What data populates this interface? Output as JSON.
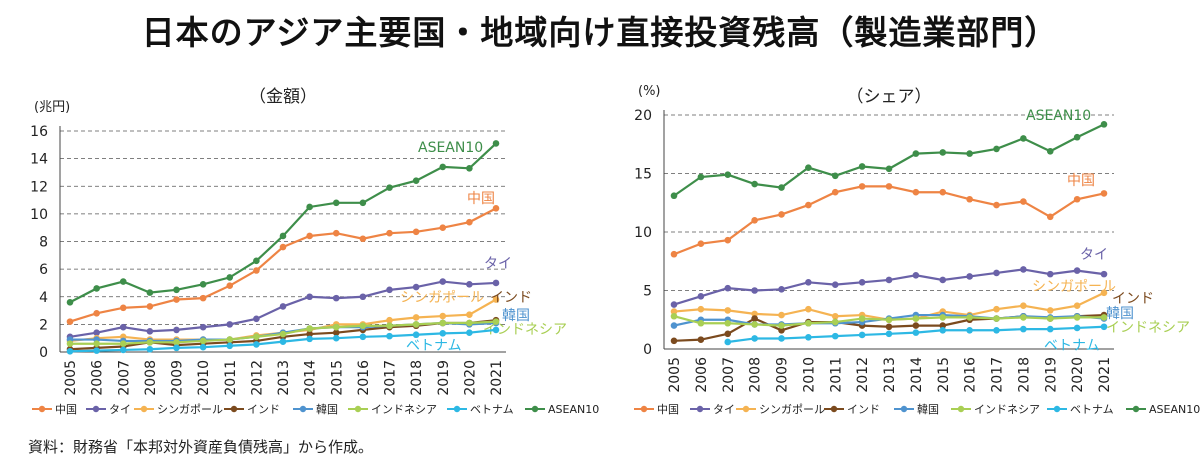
{
  "title": "日本のアジア主要国・地域向け直接投資残高（製造業部門）",
  "source": "資料：財務省「本邦対外資産負債残高」から作成。",
  "colors": {
    "中国": "#EE8444",
    "タイ": "#6A62A8",
    "シンガポール": "#F5B352",
    "インド": "#7B4A1E",
    "韓国": "#4F93CF",
    "インドネシア": "#A9CF54",
    "ベトナム": "#2DB8E4",
    "ASEAN10": "#3E8E4A"
  },
  "chart_data": [
    {
      "type": "line",
      "title": "（金額）",
      "ylabel": "(兆円)",
      "ylim": [
        0,
        16
      ],
      "yticks": [
        0,
        2,
        4,
        6,
        8,
        10,
        12,
        14,
        16
      ],
      "grid": true,
      "legend": "bottom",
      "categories": [
        "2005",
        "2006",
        "2007",
        "2008",
        "2009",
        "2010",
        "2011",
        "2012",
        "2013",
        "2014",
        "2015",
        "2016",
        "2017",
        "2018",
        "2019",
        "2020",
        "2021"
      ],
      "series": [
        {
          "name": "中国",
          "label": "中国",
          "values": [
            2.2,
            2.8,
            3.2,
            3.3,
            3.8,
            3.9,
            4.8,
            5.9,
            7.6,
            8.4,
            8.6,
            8.2,
            8.6,
            8.7,
            9.0,
            9.4,
            10.4
          ]
        },
        {
          "name": "タイ",
          "label": "タイ",
          "values": [
            1.1,
            1.4,
            1.8,
            1.5,
            1.6,
            1.8,
            2.0,
            2.4,
            3.3,
            4.0,
            3.9,
            4.0,
            4.5,
            4.7,
            5.1,
            4.9,
            5.0
          ]
        },
        {
          "name": "シンガポール",
          "label": "シンガポール",
          "values": [
            0.8,
            1.0,
            1.1,
            0.9,
            0.9,
            0.9,
            0.9,
            1.2,
            1.4,
            1.6,
            2.0,
            2.0,
            2.3,
            2.5,
            2.6,
            2.7,
            3.8
          ]
        },
        {
          "name": "インド",
          "label": "インド",
          "values": [
            0.2,
            0.3,
            0.4,
            0.7,
            0.5,
            0.6,
            0.7,
            0.8,
            1.1,
            1.3,
            1.4,
            1.6,
            1.8,
            1.9,
            2.1,
            2.1,
            2.3
          ]
        },
        {
          "name": "韓国",
          "label": "韓国",
          "values": [
            0.9,
            0.9,
            0.8,
            0.8,
            0.8,
            0.9,
            0.9,
            1.1,
            1.4,
            1.7,
            1.8,
            1.8,
            1.9,
            2.0,
            2.1,
            2.0,
            2.1
          ]
        },
        {
          "name": "インドネシア",
          "label": "インドネシア",
          "values": [
            0.6,
            0.6,
            0.6,
            0.7,
            0.7,
            0.8,
            0.9,
            1.1,
            1.3,
            1.7,
            1.8,
            1.9,
            1.9,
            2.0,
            2.1,
            2.1,
            2.2
          ]
        },
        {
          "name": "ベトナム",
          "label": "ベトナム",
          "values": [
            0.05,
            0.1,
            0.15,
            0.2,
            0.3,
            0.35,
            0.45,
            0.55,
            0.75,
            0.95,
            1.0,
            1.1,
            1.15,
            1.25,
            1.35,
            1.4,
            1.6
          ]
        },
        {
          "name": "ASEAN10",
          "label": "ASEAN10",
          "values": [
            3.6,
            4.6,
            5.1,
            4.3,
            4.5,
            4.9,
            5.4,
            6.6,
            8.4,
            10.5,
            10.8,
            10.8,
            11.9,
            12.4,
            13.4,
            13.3,
            15.1
          ]
        }
      ]
    },
    {
      "type": "line",
      "title": "（シェア）",
      "ylabel": "(%)",
      "ylim": [
        0,
        20
      ],
      "yticks": [
        0,
        5,
        10,
        15,
        20
      ],
      "grid": true,
      "legend": "bottom",
      "categories": [
        "2005",
        "2006",
        "2007",
        "2008",
        "2009",
        "2010",
        "2011",
        "2012",
        "2013",
        "2014",
        "2015",
        "2016",
        "2017",
        "2018",
        "2019",
        "2020",
        "2021"
      ],
      "series": [
        {
          "name": "中国",
          "label": "中国",
          "values": [
            8.1,
            9.0,
            9.3,
            11.0,
            11.5,
            12.3,
            13.4,
            13.9,
            13.9,
            13.4,
            13.4,
            12.8,
            12.3,
            12.6,
            11.3,
            12.8,
            13.3
          ]
        },
        {
          "name": "タイ",
          "label": "タイ",
          "values": [
            3.8,
            4.5,
            5.2,
            5.0,
            5.1,
            5.7,
            5.5,
            5.7,
            5.9,
            6.3,
            5.9,
            6.2,
            6.5,
            6.8,
            6.4,
            6.7,
            6.4
          ]
        },
        {
          "name": "シンガポール",
          "label": "シンガポール",
          "values": [
            3.2,
            3.4,
            3.3,
            3.0,
            2.9,
            3.4,
            2.8,
            2.9,
            2.5,
            2.6,
            3.2,
            2.9,
            3.4,
            3.7,
            3.3,
            3.7,
            4.8
          ]
        },
        {
          "name": "インド",
          "label": "インド",
          "values": [
            0.7,
            0.8,
            1.3,
            2.6,
            1.6,
            2.3,
            2.3,
            2.0,
            1.9,
            2.0,
            2.0,
            2.5,
            2.6,
            2.8,
            2.6,
            2.8,
            2.9
          ]
        },
        {
          "name": "韓国",
          "label": "韓国",
          "values": [
            2.0,
            2.5,
            2.5,
            2.1,
            2.1,
            2.2,
            2.2,
            2.3,
            2.6,
            2.9,
            2.9,
            2.8,
            2.6,
            2.8,
            2.7,
            2.8,
            2.6
          ]
        },
        {
          "name": "インドネシア",
          "label": "インドネシア",
          "values": [
            2.8,
            2.2,
            2.2,
            2.1,
            2.0,
            2.2,
            2.3,
            2.6,
            2.5,
            2.6,
            2.7,
            2.7,
            2.6,
            2.7,
            2.6,
            2.7,
            2.7
          ]
        },
        {
          "name": "ベトナム",
          "label": "ベトナム",
          "values": [
            null,
            null,
            0.6,
            0.9,
            0.9,
            1.0,
            1.1,
            1.2,
            1.3,
            1.4,
            1.6,
            1.6,
            1.6,
            1.7,
            1.7,
            1.8,
            1.9
          ]
        },
        {
          "name": "ASEAN10",
          "label": "ASEAN10",
          "values": [
            13.1,
            14.7,
            14.9,
            14.1,
            13.8,
            15.5,
            14.8,
            15.6,
            15.4,
            16.7,
            16.8,
            16.7,
            17.1,
            18.0,
            16.9,
            18.1,
            19.2
          ]
        }
      ]
    }
  ]
}
